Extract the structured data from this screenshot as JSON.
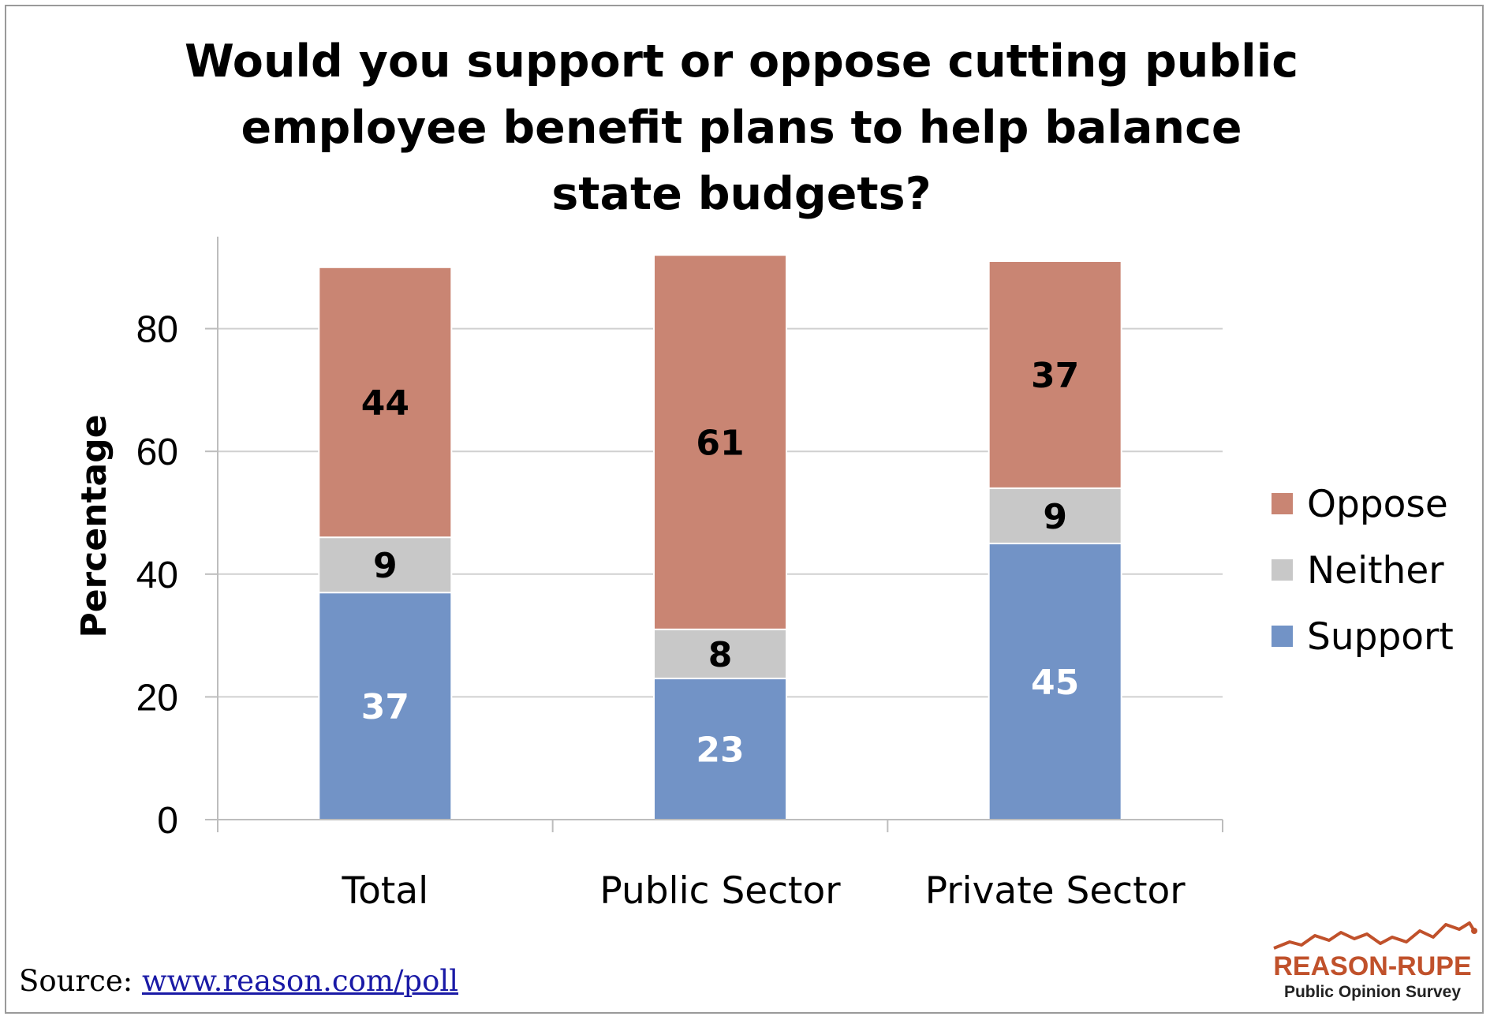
{
  "chart_data": {
    "type": "bar",
    "stacked": true,
    "title": "Would you support or oppose cutting public employee benefit plans to help balance state budgets?",
    "ylabel": "Percentage",
    "xlabel": "",
    "ylim": [
      0,
      95
    ],
    "yticks": [
      0,
      20,
      40,
      60,
      80
    ],
    "grid": true,
    "legend_position": "right",
    "categories": [
      "Total",
      "Public Sector",
      "Private Sector"
    ],
    "series": [
      {
        "name": "Support",
        "color": "#7293c6",
        "label_color": "#ffffff",
        "values": [
          37,
          23,
          45
        ]
      },
      {
        "name": "Neither",
        "color": "#c8c8c8",
        "label_color": "#000000",
        "values": [
          9,
          8,
          9
        ]
      },
      {
        "name": "Oppose",
        "color": "#c98573",
        "label_color": "#000000",
        "values": [
          44,
          61,
          37
        ]
      }
    ]
  },
  "source": {
    "prefix": "Source:",
    "link_text": "www.reason.com/poll"
  },
  "logo": {
    "name": "REASON-RUPE",
    "subtitle": "Public Opinion Survey",
    "color": "#c0512b"
  }
}
